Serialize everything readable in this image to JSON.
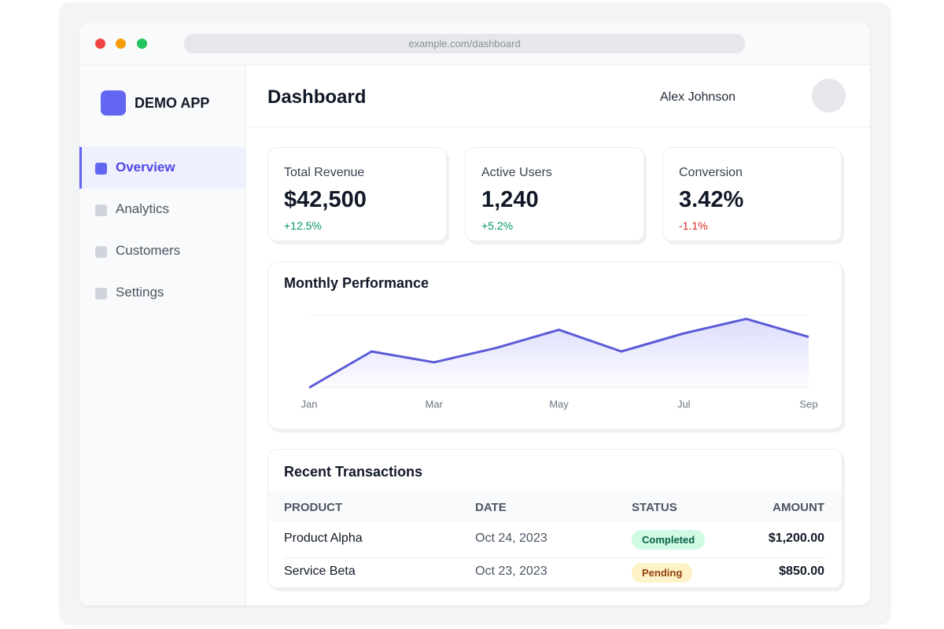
{
  "browser": {
    "url": "example.com/dashboard"
  },
  "sidebar": {
    "brand": "DEMO APP",
    "nav": [
      "Overview",
      "Analytics",
      "Customers",
      "Settings"
    ]
  },
  "header": {
    "title": "Dashboard",
    "user": "Alex Johnson"
  },
  "stats": [
    {
      "label": "Total Revenue",
      "value": "$42,500",
      "change": "+12.5%"
    },
    {
      "label": "Active Users",
      "value": "1,240",
      "change": "+5.2%"
    },
    {
      "label": "Conversion",
      "value": "3.42%",
      "change": "-1.1%"
    }
  ],
  "chart_data": {
    "type": "line",
    "title": "Monthly Performance",
    "categories": [
      "Jan",
      null,
      "Mar",
      null,
      "May",
      null,
      "Jul",
      null,
      "Sep"
    ],
    "values": [
      0,
      50,
      35,
      55,
      80,
      50,
      75,
      95,
      70
    ],
    "color": "#5b5bd6",
    "ylim": [
      0,
      100
    ]
  },
  "table": {
    "title": "Recent Transactions",
    "columns": [
      "PRODUCT",
      "DATE",
      "STATUS",
      "AMOUNT"
    ],
    "rows": [
      [
        "Product Alpha",
        "Oct 24, 2023",
        "Completed",
        "$1,200.00"
      ],
      [
        "Service Beta",
        "Oct 23, 2023",
        "Pending",
        "$850.00"
      ]
    ]
  }
}
